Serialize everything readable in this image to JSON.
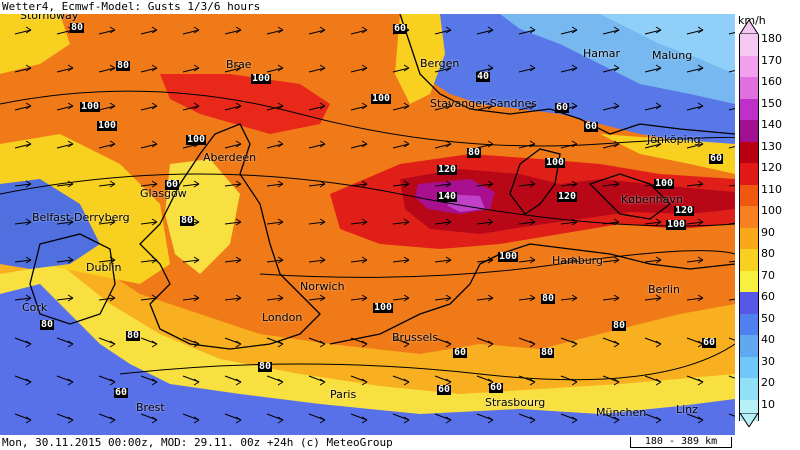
{
  "header": {
    "title": "Wetter4, Ecmwf-Model: Gusts 1/3/6 hours"
  },
  "footer": {
    "text": "Mon, 30.11.2015 00:00z, MOD: 29.11. 00z +24h (c) MeteoGroup",
    "scale": "180 - 389 km"
  },
  "legend": {
    "unit": "km/h",
    "levels": [
      {
        "label": "180",
        "color": "#f4c8f0"
      },
      {
        "label": "170",
        "color": "#f0a0ec"
      },
      {
        "label": "160",
        "color": "#e070e0"
      },
      {
        "label": "150",
        "color": "#c030c8"
      },
      {
        "label": "140",
        "color": "#a01090"
      },
      {
        "label": "130",
        "color": "#b80010"
      },
      {
        "label": "120",
        "color": "#e01818"
      },
      {
        "label": "110",
        "color": "#f05810"
      },
      {
        "label": "100",
        "color": "#f88020"
      },
      {
        "label": "90",
        "color": "#f8a818"
      },
      {
        "label": "80",
        "color": "#f8d020"
      },
      {
        "label": "70",
        "color": "#f8f040"
      },
      {
        "label": "60",
        "color": "#5858e8"
      },
      {
        "label": "50",
        "color": "#5080f0"
      },
      {
        "label": "40",
        "color": "#60a8f0"
      },
      {
        "label": "30",
        "color": "#70c8f8"
      },
      {
        "label": "20",
        "color": "#90e0f8"
      },
      {
        "label": "10",
        "color": "#b8f0f8"
      }
    ]
  },
  "cities": [
    {
      "name": "Bergen"
    },
    {
      "name": "Hamar"
    },
    {
      "name": "Malung"
    },
    {
      "name": "Stavanger-Sandnes"
    },
    {
      "name": "Jönköping"
    },
    {
      "name": "Aberdeen"
    },
    {
      "name": "Glasgow"
    },
    {
      "name": "Belfast-Derryberg"
    },
    {
      "name": "Dublin"
    },
    {
      "name": "Cork"
    },
    {
      "name": "Norwich"
    },
    {
      "name": "London"
    },
    {
      "name": "Brussels"
    },
    {
      "name": "Paris"
    },
    {
      "name": "Brest"
    },
    {
      "name": "Hamburg"
    },
    {
      "name": "Berlin"
    },
    {
      "name": "København"
    },
    {
      "name": "Strasbourg"
    },
    {
      "name": "München"
    },
    {
      "name": "Linz"
    },
    {
      "name": "Brae"
    },
    {
      "name": "Stornoway"
    }
  ],
  "isolines": [
    "60",
    "80",
    "100",
    "120",
    "140",
    "40",
    "50",
    "70",
    "90",
    "110",
    "130"
  ]
}
